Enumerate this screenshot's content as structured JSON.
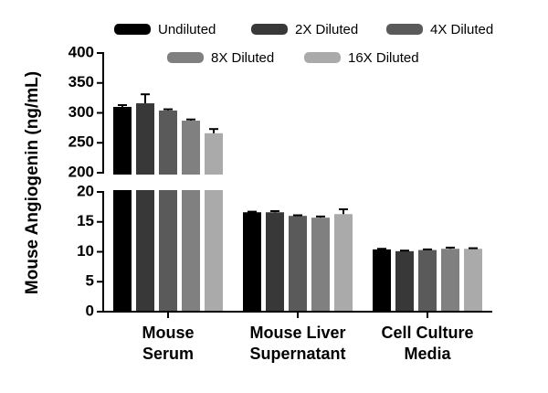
{
  "chart_data": {
    "type": "bar",
    "y_label": "Mouse Angiogenin (ng/mL)",
    "categories": [
      [
        "Mouse",
        "Serum"
      ],
      [
        "Mouse Liver",
        "Supernatant"
      ],
      [
        "Cell Culture",
        "Media"
      ]
    ],
    "series": [
      {
        "name": "Undiluted",
        "color": "#000000",
        "values": [
          310,
          16.6,
          10.4
        ],
        "errors": [
          3,
          0.1,
          0.1
        ]
      },
      {
        "name": "2X Diluted",
        "color": "#383838",
        "values": [
          316,
          16.6,
          10.1
        ],
        "errors": [
          15,
          0.2,
          0.1
        ]
      },
      {
        "name": "4X Diluted",
        "color": "#5a5a5a",
        "values": [
          304,
          16.0,
          10.3
        ],
        "errors": [
          2,
          0.1,
          0.1
        ]
      },
      {
        "name": "8X Diluted",
        "color": "#808080",
        "values": [
          287,
          15.7,
          10.5
        ],
        "errors": [
          2,
          0.2,
          0.2
        ]
      },
      {
        "name": "16X Diluted",
        "color": "#aaaaaa",
        "values": [
          266,
          16.3,
          10.5
        ],
        "errors": [
          7,
          0.8,
          0.1
        ]
      }
    ],
    "ylim": [
      0,
      400
    ],
    "axis_break": [
      20,
      200
    ],
    "yticks": [
      0,
      5,
      10,
      15,
      20,
      200,
      250,
      300,
      350,
      400
    ]
  }
}
